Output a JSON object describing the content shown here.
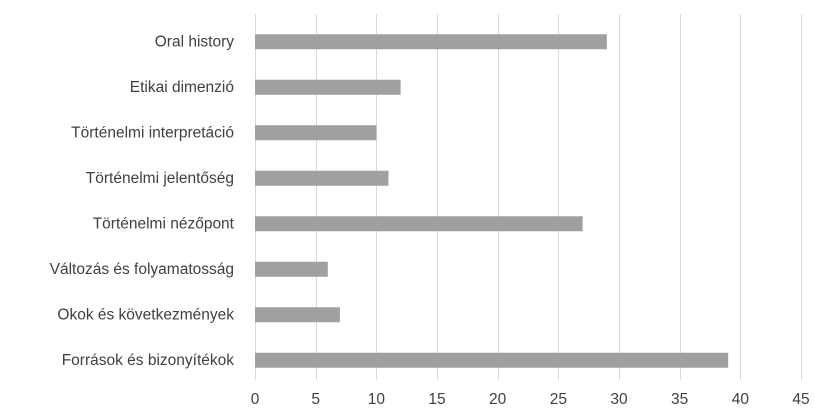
{
  "chart_data": {
    "type": "bar",
    "orientation": "horizontal",
    "categories": [
      "Oral history",
      "Etikai dimenzió",
      "Történelmi interpretáció",
      "Történelmi jelentőség",
      "Történelmi nézőpont",
      "Változás és folyamatosság",
      "Okok és következmények",
      "Források és bizonyítékok"
    ],
    "values": [
      29,
      12,
      10,
      11,
      27,
      6,
      7,
      39
    ],
    "xlim": [
      0,
      45
    ],
    "xticks": [
      "0",
      "5",
      "10",
      "15",
      "20",
      "25",
      "30",
      "35",
      "40",
      "45"
    ],
    "grid": "vertical",
    "legend": "none",
    "title": "",
    "xlabel": "",
    "ylabel": "",
    "bar_color": "#a0a0a0",
    "grid_color": "#d9d9d9",
    "text_color": "#404040"
  }
}
